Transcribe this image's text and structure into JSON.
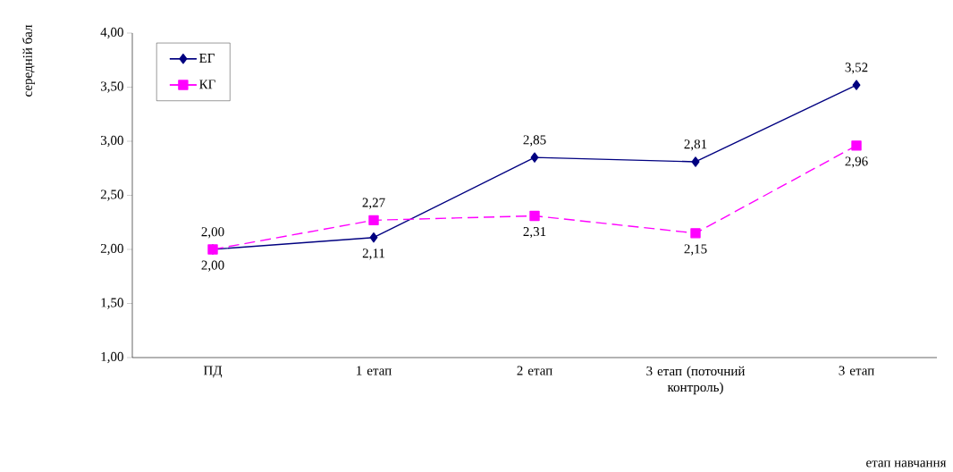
{
  "chart_data": {
    "type": "line",
    "xlabel": "етап навчання",
    "ylabel": "середній бал",
    "categories": [
      "ПД",
      "1 етап",
      "2 етап",
      "3 етап (поточний контроль)",
      "3 етап"
    ],
    "ylim": [
      1,
      4
    ],
    "yticks": [
      {
        "value": 1,
        "label": "1,00"
      },
      {
        "value": 1.5,
        "label": "1,50"
      },
      {
        "value": 2,
        "label": "2,00"
      },
      {
        "value": 2.5,
        "label": "2,50"
      },
      {
        "value": 3,
        "label": "3,00"
      },
      {
        "value": 3.5,
        "label": "3,50"
      },
      {
        "value": 4,
        "label": "4,00"
      }
    ],
    "legend": "top left",
    "grid": false,
    "series": [
      {
        "name": "ЕГ",
        "color": "#000080",
        "marker": "diamond",
        "line_style": "solid",
        "values": [
          2.0,
          2.11,
          2.85,
          2.81,
          3.52
        ],
        "value_labels": [
          "2,00",
          "2,11",
          "2,85",
          "2,81",
          "3,52"
        ]
      },
      {
        "name": "КГ",
        "color": "#ff00ff",
        "marker": "square",
        "line_style": "dashed",
        "values": [
          2.0,
          2.27,
          2.31,
          2.15,
          2.96
        ],
        "value_labels": [
          "2,00",
          "2,27",
          "2,31",
          "2,15",
          "2,96"
        ]
      }
    ]
  }
}
